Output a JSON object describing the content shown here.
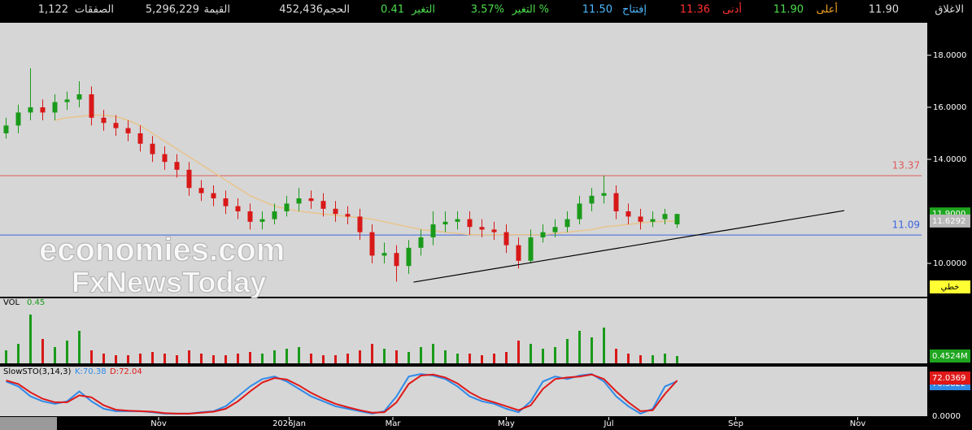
{
  "header": {
    "items": [
      {
        "label": "الاغلاق",
        "value": "11.90"
      },
      {
        "label": "أعلى",
        "value": "11.90"
      },
      {
        "label": "أدنى",
        "value": "11.36"
      },
      {
        "label": "إفتتاح",
        "value": "11.50"
      },
      {
        "label": "التغير %",
        "value": "3.57%"
      },
      {
        "label": "التغير",
        "value": "0.41"
      },
      {
        "label": "الحجم",
        "value": "452,436"
      },
      {
        "label": "القيمة",
        "value": "5,296,229"
      },
      {
        "label": "الصفقات",
        "value": "1,122"
      }
    ]
  },
  "watermark": [
    "economies.com",
    "FxNewsToday"
  ],
  "chart_data": [
    {
      "type": "candlestick",
      "open": [
        15.0,
        15.3,
        15.8,
        16.0,
        15.8,
        16.2,
        16.3,
        16.5,
        15.6,
        15.4,
        15.2,
        15.0,
        14.6,
        14.2,
        13.9,
        13.6,
        12.9,
        12.7,
        12.5,
        12.2,
        12.0,
        11.6,
        11.7,
        12.0,
        12.3,
        12.5,
        12.4,
        12.1,
        11.9,
        11.8,
        11.2,
        10.3,
        10.4,
        9.9,
        10.6,
        11.0,
        11.5,
        11.6,
        11.7,
        11.4,
        11.3,
        11.2,
        10.7,
        10.1,
        11.0,
        11.2,
        11.4,
        11.7,
        12.3,
        12.6,
        12.7,
        12.0,
        11.8,
        11.6,
        11.7,
        11.5
      ],
      "high": [
        15.6,
        16.1,
        17.5,
        16.3,
        16.5,
        16.6,
        17.0,
        16.8,
        15.9,
        15.7,
        15.5,
        15.3,
        14.9,
        14.5,
        14.2,
        13.9,
        13.2,
        13.0,
        12.8,
        12.5,
        12.3,
        12.0,
        12.3,
        12.6,
        12.9,
        12.8,
        12.7,
        12.4,
        12.2,
        12.1,
        11.5,
        10.8,
        10.7,
        10.9,
        11.3,
        12.0,
        12.0,
        12.0,
        12.0,
        11.7,
        11.6,
        11.5,
        11.0,
        11.3,
        11.5,
        11.7,
        12.0,
        12.6,
        12.9,
        13.37,
        13.0,
        12.3,
        12.1,
        12.0,
        12.1,
        11.9
      ],
      "low": [
        14.8,
        15.0,
        15.5,
        15.5,
        15.5,
        15.9,
        16.0,
        15.3,
        15.1,
        14.9,
        14.7,
        14.3,
        13.9,
        13.6,
        13.3,
        12.6,
        12.4,
        12.2,
        11.9,
        11.7,
        11.3,
        11.3,
        11.5,
        11.8,
        12.0,
        12.1,
        11.8,
        11.6,
        11.5,
        10.9,
        10.0,
        10.0,
        9.3,
        9.6,
        10.3,
        10.7,
        11.2,
        11.3,
        11.1,
        11.0,
        10.9,
        10.4,
        9.8,
        10.0,
        10.8,
        11.0,
        11.2,
        11.5,
        12.0,
        12.3,
        11.7,
        11.5,
        11.3,
        11.4,
        11.5,
        11.36
      ],
      "close": [
        15.3,
        15.8,
        16.0,
        15.8,
        16.2,
        16.3,
        16.5,
        15.6,
        15.4,
        15.2,
        15.0,
        14.6,
        14.2,
        13.9,
        13.6,
        12.9,
        12.7,
        12.5,
        12.2,
        12.0,
        11.6,
        11.7,
        12.0,
        12.3,
        12.5,
        12.4,
        12.1,
        11.9,
        11.8,
        11.2,
        10.3,
        10.4,
        9.9,
        10.6,
        11.0,
        11.5,
        11.6,
        11.7,
        11.4,
        11.3,
        11.2,
        10.7,
        10.1,
        11.0,
        11.2,
        11.4,
        11.7,
        12.3,
        12.6,
        12.7,
        12.0,
        11.8,
        11.6,
        11.7,
        11.9,
        11.9
      ],
      "up_color": "#1a9a1a",
      "down_color": "#d81818",
      "ylim": [
        8.72,
        19.25
      ],
      "yticks": [
        {
          "value": 18,
          "label": "18.0000"
        },
        {
          "value": 16,
          "label": "16.0000"
        },
        {
          "value": 14,
          "label": "14.0000"
        },
        {
          "value": 10,
          "label": "10.0000"
        }
      ],
      "xlim": [
        -0.5,
        75.5
      ],
      "xticks": [
        {
          "value": 12.5,
          "label": "Nov"
        },
        {
          "value": 23.2,
          "label": "2026Jan"
        },
        {
          "value": 31.7,
          "label": "Mar"
        },
        {
          "value": 41.0,
          "label": "May"
        },
        {
          "value": 49.4,
          "label": "Jul"
        },
        {
          "value": 59.8,
          "label": "Sep"
        },
        {
          "value": 69.8,
          "label": "Nov"
        }
      ],
      "moving_average": {
        "color": "#e8c48c",
        "values": [
          null,
          null,
          null,
          null,
          15.5,
          15.6,
          15.65,
          15.7,
          15.7,
          15.65,
          15.5,
          15.3,
          15.0,
          14.7,
          14.4,
          14.1,
          13.8,
          13.5,
          13.2,
          12.9,
          12.6,
          12.4,
          12.2,
          12.1,
          12.0,
          11.95,
          11.9,
          11.85,
          11.8,
          11.75,
          11.7,
          11.6,
          11.5,
          11.4,
          11.3,
          11.25,
          11.2,
          11.15,
          11.1,
          11.1,
          11.1,
          11.1,
          11.1,
          11.1,
          11.1,
          11.15,
          11.2,
          11.25,
          11.3,
          11.4,
          11.45,
          11.5,
          11.55,
          11.6,
          11.62,
          11.6292
        ]
      },
      "hlines": [
        {
          "value": 13.37,
          "color": "#e05a5a"
        },
        {
          "value": 11.09,
          "color": "#3a64e0"
        }
      ],
      "last_price": {
        "value": 11.9,
        "label": "11.9000"
      },
      "trendline": {
        "x": [
          33.4,
          68.7
        ],
        "y": [
          9.28,
          12.03
        ]
      },
      "scale_mode": "خطي"
    },
    {
      "type": "bar",
      "title": "VOL",
      "title_value": 0.45,
      "values": [
        0.8,
        1.2,
        3.0,
        1.5,
        1.0,
        1.4,
        2.0,
        0.8,
        0.6,
        0.5,
        0.5,
        0.6,
        0.7,
        0.6,
        0.5,
        0.8,
        0.6,
        0.5,
        0.5,
        0.6,
        0.7,
        0.6,
        0.8,
        0.9,
        1.0,
        0.6,
        0.5,
        0.5,
        0.6,
        0.8,
        1.2,
        0.9,
        0.8,
        0.7,
        1.0,
        1.2,
        0.8,
        0.6,
        0.6,
        0.5,
        0.6,
        0.7,
        1.4,
        1.2,
        0.9,
        1.0,
        1.5,
        2.0,
        1.6,
        2.2,
        0.9,
        0.6,
        0.5,
        0.5,
        0.6,
        0.4524
      ],
      "ylim": [
        0,
        4
      ],
      "yticks": [
        {
          "value": 0.4524,
          "label": "0.4524M"
        }
      ]
    },
    {
      "type": "line",
      "title": "SlowSTO(3,14,3)",
      "series": [
        {
          "name": "K:70.38",
          "color": "#2f8ae8",
          "values": [
            70,
            60,
            40,
            30,
            25,
            30,
            50,
            30,
            15,
            10,
            10,
            10,
            8,
            5,
            5,
            5,
            8,
            10,
            20,
            40,
            60,
            75,
            80,
            70,
            55,
            40,
            30,
            20,
            15,
            10,
            5,
            10,
            40,
            80,
            85,
            82,
            75,
            60,
            40,
            30,
            25,
            15,
            8,
            30,
            70,
            80,
            75,
            82,
            85,
            70,
            40,
            20,
            5,
            15,
            60,
            70.3822
          ]
        },
        {
          "name": "D:72.04",
          "color": "#e01818",
          "values": [
            72,
            65,
            48,
            35,
            28,
            28,
            42,
            38,
            22,
            13,
            11,
            10,
            9,
            6,
            5,
            5,
            7,
            9,
            15,
            30,
            50,
            68,
            77,
            74,
            62,
            47,
            35,
            25,
            18,
            12,
            7,
            8,
            28,
            65,
            82,
            84,
            78,
            66,
            48,
            35,
            28,
            20,
            12,
            22,
            55,
            75,
            78,
            80,
            84,
            75,
            50,
            28,
            10,
            12,
            45,
            72.0369
          ]
        }
      ],
      "ylim": [
        0,
        100
      ],
      "yticks": [
        {
          "value": 0,
          "label": "0.0000"
        }
      ]
    }
  ]
}
